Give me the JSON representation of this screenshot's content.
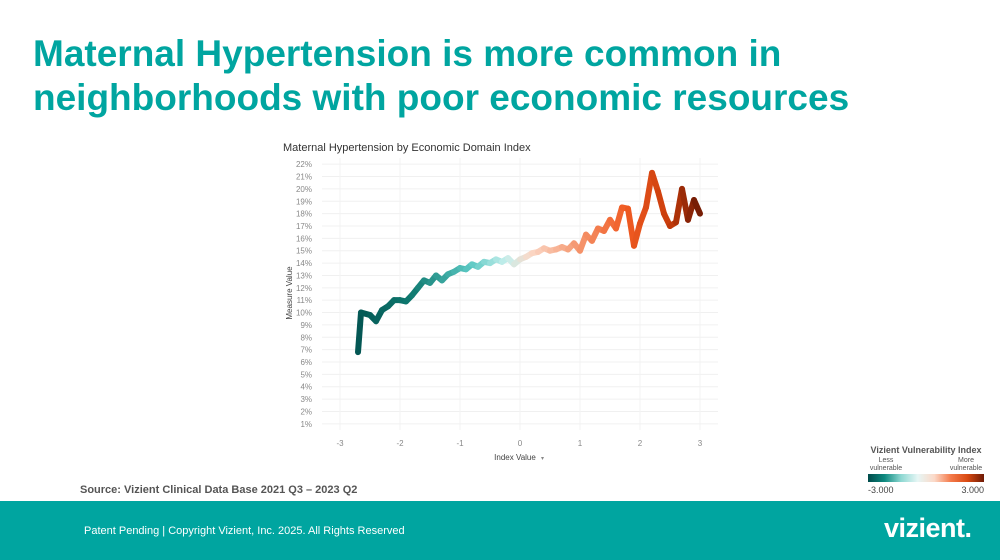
{
  "slide": {
    "title_line1": "Maternal Hypertension is more common in",
    "title_line2": "neighborhoods with poor economic resources",
    "source": "Source: Vizient Clinical Data Base 2021 Q3 – 2023 Q2",
    "footer_text": "Patent Pending  |  Copyright Vizient, Inc. 2025. All Rights Reserved",
    "logo_text": "vizient."
  },
  "legend": {
    "title": "Vizient Vulnerability Index",
    "less_label": "Less vulnerable",
    "more_label": "More vulnerable",
    "min_label": "-3.000",
    "max_label": "3.000"
  },
  "colors": {
    "brand_teal": "#00A5A0",
    "low": "#004B4B",
    "mid_low": "#0E8A80",
    "neutral_low": "#C6EFEC",
    "neutral_high": "#FBD9C8",
    "mid_high": "#F05A22",
    "high": "#6E1A05"
  },
  "chart_data": {
    "type": "line",
    "title": "Maternal Hypertension by Economic Domain Index",
    "xlabel": "Index Value",
    "ylabel": "Measure Value",
    "xlim": [
      -3.3,
      3.3
    ],
    "ylim": [
      0.5,
      22.5
    ],
    "x_ticks": [
      -3,
      -2,
      -1,
      0,
      1,
      2,
      3
    ],
    "x_tick_labels": [
      "-3",
      "-2",
      "-1",
      "0",
      "1",
      "2",
      "3"
    ],
    "y_ticks": [
      1,
      2,
      3,
      4,
      5,
      6,
      7,
      8,
      9,
      10,
      11,
      12,
      13,
      14,
      15,
      16,
      17,
      18,
      19,
      20,
      21,
      22
    ],
    "y_tick_labels": [
      "1%",
      "2%",
      "3%",
      "4%",
      "5%",
      "6%",
      "7%",
      "8%",
      "9%",
      "10%",
      "11%",
      "12%",
      "13%",
      "14%",
      "15%",
      "16%",
      "17%",
      "18%",
      "19%",
      "20%",
      "21%",
      "22%"
    ],
    "grid": true,
    "color_scale": [
      -3,
      3
    ],
    "series": [
      {
        "x": [
          -2.7,
          -2.65,
          -2.5,
          -2.4,
          -2.3,
          -2.2,
          -2.1,
          -2.0,
          -1.9,
          -1.8,
          -1.7,
          -1.6,
          -1.5,
          -1.4,
          -1.3,
          -1.2,
          -1.1,
          -1.0,
          -0.9,
          -0.8,
          -0.7,
          -0.6,
          -0.5,
          -0.4,
          -0.3,
          -0.2,
          -0.1,
          0.0,
          0.1,
          0.2,
          0.3,
          0.4,
          0.5,
          0.6,
          0.7,
          0.8,
          0.9,
          1.0,
          1.1,
          1.2,
          1.3,
          1.4,
          1.5,
          1.6,
          1.7,
          1.8,
          1.9,
          2.0,
          2.1,
          2.2,
          2.3,
          2.4,
          2.5,
          2.6,
          2.7,
          2.8,
          2.9,
          3.0
        ],
        "y": [
          6.8,
          10.0,
          9.8,
          9.3,
          10.2,
          10.5,
          11.0,
          11.0,
          10.9,
          11.4,
          12.0,
          12.6,
          12.4,
          13.0,
          12.6,
          13.1,
          13.3,
          13.6,
          13.5,
          13.9,
          13.7,
          14.1,
          14.0,
          14.3,
          14.1,
          14.4,
          13.9,
          14.3,
          14.5,
          14.8,
          14.9,
          15.2,
          15.0,
          15.1,
          15.3,
          15.1,
          15.6,
          15.0,
          16.3,
          15.8,
          16.8,
          16.6,
          17.5,
          16.8,
          18.5,
          18.4,
          15.4,
          17.2,
          18.5,
          21.3,
          19.8,
          18.0,
          17.0,
          17.3,
          20.0,
          17.5,
          19.1,
          18.0
        ]
      }
    ]
  }
}
